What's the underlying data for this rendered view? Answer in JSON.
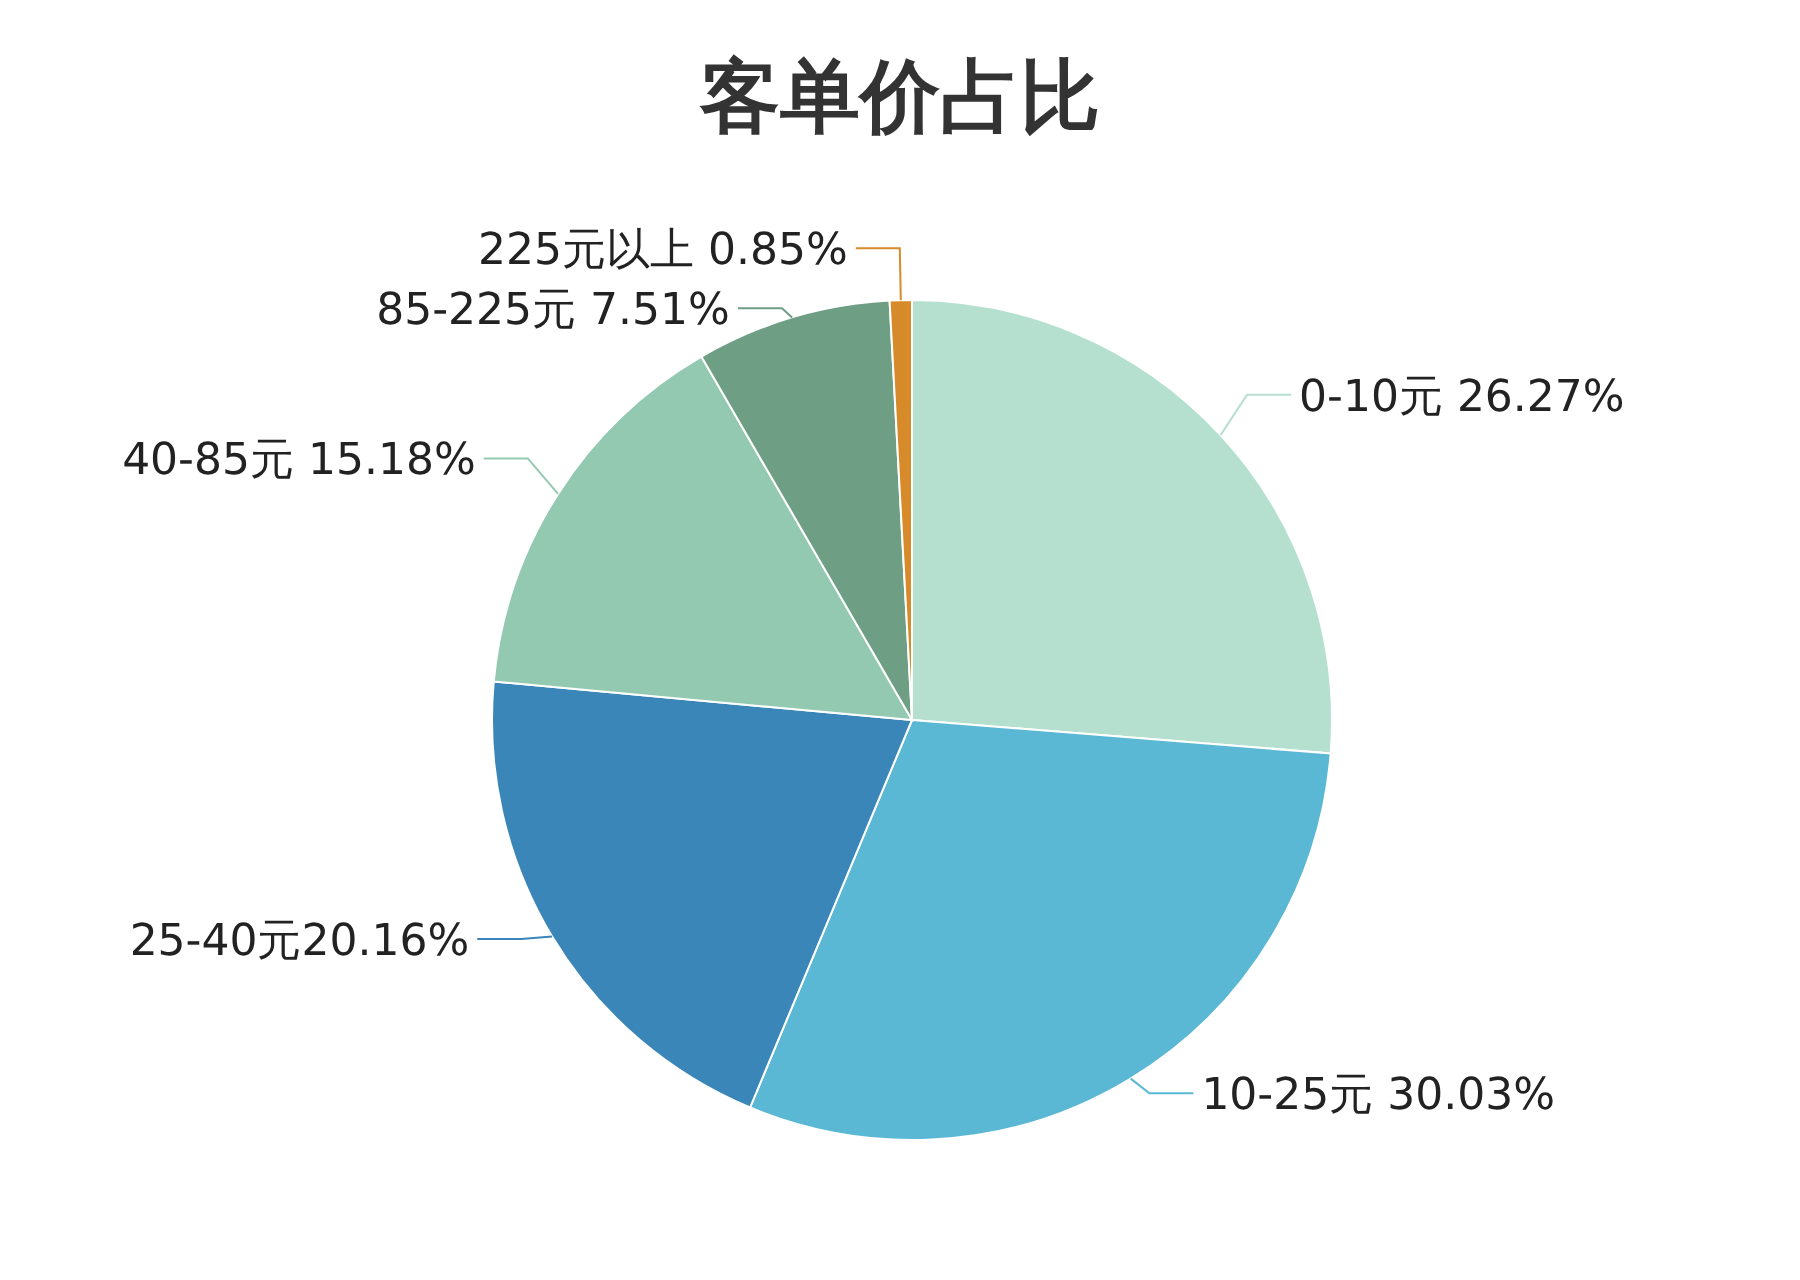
{
  "chart_data": {
    "type": "pie",
    "title": "客单价占比",
    "categories": [
      "0-10元 ",
      "10-25元 ",
      "25-40元",
      "40-85元 ",
      "85-225元 ",
      "225元以上 "
    ],
    "values": [
      26.27,
      30.03,
      20.16,
      15.18,
      7.51,
      0.85
    ],
    "value_labels": [
      "26.27%",
      "30.03%",
      "20.16%",
      "15.18%",
      "7.51%",
      "0.85%"
    ],
    "colors": [
      "#b5e0cf",
      "#5ab8d5",
      "#3a86b8",
      "#93c9b0",
      "#6e9e84",
      "#d68a2a"
    ]
  }
}
